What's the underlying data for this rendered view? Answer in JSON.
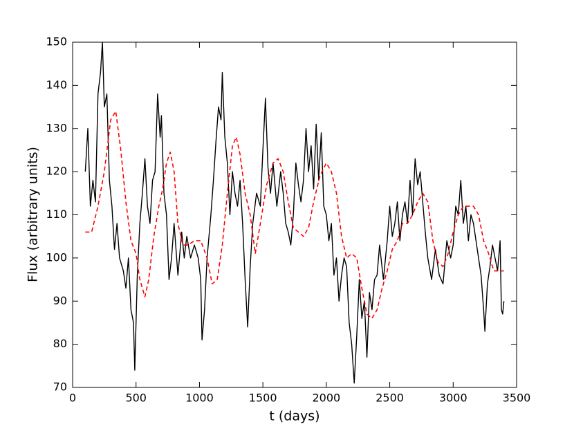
{
  "chart_data": {
    "type": "line",
    "x_label": "t (days)",
    "y_label": "Flux (arbitrary units)",
    "xlim": [
      0,
      3500
    ],
    "xticks": [
      0,
      500,
      1000,
      1500,
      2000,
      2500,
      3000,
      3500
    ],
    "ylim": [
      70,
      150
    ],
    "yticks": [
      70,
      80,
      90,
      100,
      110,
      120,
      130,
      140,
      150
    ],
    "series": [
      {
        "color": "#000000",
        "dashed": false,
        "x": [
          100,
          120,
          140,
          160,
          180,
          200,
          220,
          235,
          250,
          270,
          290,
          310,
          330,
          350,
          370,
          400,
          420,
          440,
          460,
          480,
          490,
          510,
          530,
          550,
          570,
          590,
          610,
          630,
          650,
          670,
          690,
          700,
          720,
          740,
          760,
          780,
          800,
          830,
          860,
          880,
          900,
          930,
          960,
          990,
          1010,
          1020,
          1040,
          1060,
          1090,
          1110,
          1130,
          1150,
          1170,
          1180,
          1200,
          1220,
          1240,
          1260,
          1280,
          1300,
          1320,
          1340,
          1360,
          1380,
          1400,
          1420,
          1450,
          1480,
          1500,
          1520,
          1540,
          1560,
          1580,
          1610,
          1640,
          1660,
          1680,
          1700,
          1720,
          1740,
          1760,
          1780,
          1800,
          1820,
          1840,
          1860,
          1880,
          1900,
          1920,
          1940,
          1960,
          1980,
          2000,
          2020,
          2040,
          2060,
          2080,
          2100,
          2120,
          2140,
          2160,
          2180,
          2200,
          2220,
          2240,
          2260,
          2280,
          2300,
          2320,
          2340,
          2360,
          2380,
          2400,
          2420,
          2450,
          2480,
          2500,
          2520,
          2540,
          2560,
          2580,
          2600,
          2620,
          2640,
          2660,
          2680,
          2700,
          2720,
          2740,
          2760,
          2780,
          2800,
          2830,
          2860,
          2890,
          2920,
          2950,
          2980,
          3000,
          3020,
          3040,
          3060,
          3080,
          3100,
          3120,
          3140,
          3160,
          3180,
          3200,
          3220,
          3240,
          3250,
          3270,
          3290,
          3310,
          3330,
          3350,
          3370,
          3380,
          3390,
          3400
        ],
        "values": [
          120,
          130,
          112,
          118,
          113,
          138,
          143,
          150,
          135,
          138,
          118,
          112,
          102,
          108,
          100,
          97,
          93,
          100,
          88,
          85,
          74,
          96,
          108,
          115,
          123,
          112,
          108,
          118,
          120,
          138,
          128,
          133,
          115,
          110,
          95,
          100,
          108,
          96,
          106,
          100,
          105,
          100,
          103,
          100,
          95,
          81,
          88,
          100,
          110,
          118,
          127,
          135,
          132,
          143,
          128,
          122,
          110,
          120,
          115,
          112,
          118,
          108,
          95,
          84,
          98,
          108,
          115,
          112,
          125,
          137,
          121,
          115,
          122,
          112,
          120,
          115,
          108,
          106,
          103,
          110,
          122,
          117,
          113,
          118,
          130,
          120,
          126,
          116,
          131,
          118,
          129,
          112,
          110,
          104,
          108,
          96,
          100,
          90,
          96,
          100,
          98,
          85,
          80,
          71,
          82,
          95,
          86,
          90,
          77,
          92,
          88,
          95,
          96,
          103,
          95,
          104,
          112,
          105,
          108,
          113,
          104,
          110,
          113,
          108,
          118,
          110,
          123,
          117,
          120,
          113,
          106,
          100,
          95,
          102,
          96,
          94,
          104,
          100,
          103,
          112,
          110,
          118,
          108,
          112,
          104,
          110,
          108,
          104,
          100,
          96,
          88,
          83,
          94,
          98,
          103,
          100,
          97,
          104,
          88,
          87,
          90
        ]
      },
      {
        "color": "#ff0000",
        "dashed": true,
        "x": [
          100,
          150,
          200,
          250,
          300,
          340,
          380,
          420,
          460,
          500,
          530,
          570,
          600,
          640,
          680,
          710,
          740,
          770,
          800,
          830,
          870,
          910,
          960,
          1010,
          1060,
          1100,
          1140,
          1180,
          1220,
          1260,
          1290,
          1320,
          1360,
          1400,
          1440,
          1480,
          1530,
          1580,
          1620,
          1660,
          1700,
          1740,
          1780,
          1820,
          1860,
          1900,
          1950,
          2000,
          2040,
          2080,
          2120,
          2160,
          2200,
          2240,
          2280,
          2320,
          2360,
          2400,
          2440,
          2480,
          2520,
          2560,
          2600,
          2640,
          2680,
          2720,
          2760,
          2800,
          2840,
          2880,
          2920,
          2960,
          3000,
          3040,
          3080,
          3120,
          3160,
          3200,
          3240,
          3280,
          3320,
          3360,
          3400
        ],
        "values": [
          106,
          106,
          112,
          120,
          132,
          134,
          125,
          113,
          104,
          101,
          95,
          91,
          95,
          105,
          112,
          116,
          122,
          124.5,
          120,
          108,
          103,
          103,
          104,
          104,
          100,
          94,
          95,
          103,
          115,
          126,
          128,
          124,
          115,
          110,
          101,
          108,
          117,
          122,
          123,
          120,
          113,
          107,
          106,
          105,
          107,
          113,
          119,
          122,
          120,
          115,
          105,
          100,
          101,
          100,
          93,
          87,
          86,
          88,
          93,
          97,
          102,
          104,
          108,
          108,
          110,
          113,
          115,
          113,
          104,
          99,
          98,
          101,
          106,
          110,
          112,
          112,
          112,
          110,
          104,
          101,
          97,
          97,
          97
        ]
      }
    ]
  }
}
